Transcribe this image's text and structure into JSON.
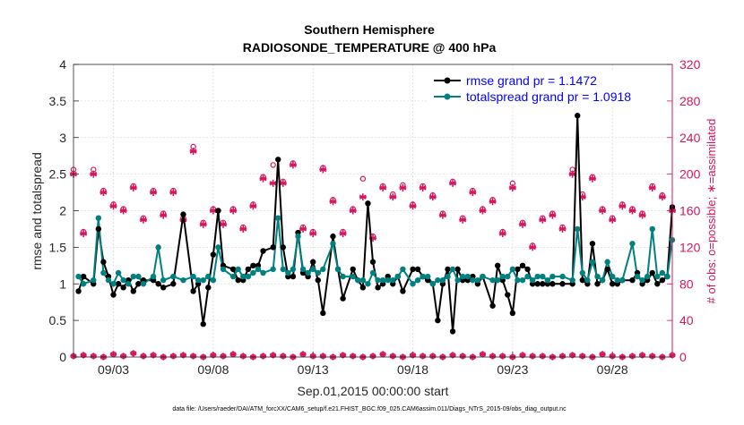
{
  "chart_data": {
    "type": "line",
    "title_line1": "Southern Hemisphere",
    "title_line2": "RADIOSONDE_TEMPERATURE @ 400 hPa",
    "xlabel": "Sep.01,2015 00:00:00 start",
    "ylabel_left": "rmse and totalspread",
    "ylabel_right": "# of obs: o=possible; ∗=assimilated",
    "footnote": "data file: /Users/raeder/DAI/ATM_forcXX/CAM6_setup/f.e21.FHIST_BGC.f09_025.CAM6assim.011/Diags_NTrS_2015-09/obs_diag_output.nc",
    "x_tick_labels": [
      "09/03",
      "09/08",
      "09/13",
      "09/18",
      "09/23",
      "09/28"
    ],
    "x_tick_days": [
      3,
      8,
      13,
      18,
      23,
      28
    ],
    "xlim": [
      1.0,
      31.0
    ],
    "ylim_left": [
      0,
      4
    ],
    "yticks_left": [
      "0",
      "0.5",
      "1",
      "1.5",
      "2",
      "2.5",
      "3",
      "3.5",
      "4"
    ],
    "ylim_right": [
      0,
      320
    ],
    "yticks_right": [
      "0",
      "40",
      "80",
      "120",
      "160",
      "200",
      "240",
      "280",
      "320"
    ],
    "legend": {
      "rmse_label": "rmse grand pr = 1.1472",
      "spread_label": "totalspread grand pr = 1.0918"
    },
    "colors": {
      "rmse": "#000000",
      "spread": "#00807f",
      "obs": "#d6145f",
      "legend_text": "#0000ff"
    },
    "series": [
      {
        "name": "rmse",
        "x": [
          1.25,
          1.5,
          2.0,
          2.25,
          2.5,
          2.75,
          3.0,
          3.25,
          3.5,
          3.75,
          4.0,
          4.25,
          4.5,
          5.0,
          5.25,
          5.5,
          6.0,
          6.5,
          7.0,
          7.25,
          7.5,
          7.75,
          8.0,
          8.25,
          8.5,
          9.0,
          9.25,
          9.5,
          9.75,
          10.0,
          10.25,
          10.5,
          11.0,
          11.25,
          11.5,
          11.75,
          12.0,
          12.25,
          12.5,
          12.75,
          13.0,
          13.25,
          13.5,
          14.0,
          14.25,
          14.5,
          15.0,
          15.25,
          15.5,
          15.75,
          16.0,
          16.25,
          16.5,
          16.75,
          17.0,
          17.25,
          17.5,
          18.0,
          18.25,
          18.5,
          18.75,
          19.0,
          19.25,
          19.5,
          19.75,
          20.0,
          20.25,
          20.5,
          20.75,
          21.0,
          21.25,
          21.5,
          22.0,
          22.25,
          22.5,
          22.75,
          23.0,
          23.25,
          23.5,
          23.75,
          24.0,
          24.25,
          24.5,
          24.75,
          25.0,
          25.5,
          26.0,
          26.25,
          26.5,
          26.75,
          27.0,
          27.25,
          27.5,
          27.75,
          28.0,
          28.25,
          28.5,
          29.0,
          29.25,
          29.5,
          29.75,
          30.0,
          30.25,
          30.5,
          30.75,
          31.0
        ],
        "values": [
          0.9,
          1.1,
          1.0,
          1.75,
          1.3,
          1.1,
          0.85,
          1.0,
          0.95,
          1.05,
          0.9,
          1.0,
          1.05,
          1.05,
          1.0,
          0.95,
          1.0,
          1.95,
          0.9,
          1.0,
          0.45,
          0.95,
          1.4,
          2.0,
          1.25,
          1.2,
          1.05,
          1.05,
          1.2,
          1.25,
          1.25,
          1.45,
          1.5,
          2.7,
          1.5,
          1.1,
          1.1,
          1.7,
          1.15,
          1.1,
          1.3,
          1.05,
          0.6,
          1.65,
          1.2,
          0.8,
          1.2,
          1.05,
          0.95,
          2.1,
          1.3,
          0.95,
          1.0,
          1.1,
          1.0,
          1.1,
          0.9,
          1.2,
          1.2,
          1.1,
          1.05,
          1.0,
          0.5,
          1.0,
          1.2,
          0.35,
          1.2,
          1.05,
          1.05,
          1.1,
          1.0,
          1.1,
          0.7,
          1.25,
          1.05,
          0.85,
          0.6,
          1.2,
          1.25,
          1.2,
          1.0,
          1.0,
          1.0,
          1.0,
          1.0,
          1.0,
          1.0,
          3.3,
          1.05,
          1.0,
          1.55,
          1.0,
          1.05,
          1.2,
          1.0,
          1.0,
          1.05,
          1.05,
          1.15,
          1.0,
          1.05,
          1.15,
          1.0,
          1.05,
          1.1,
          2.05
        ],
        "spread_values": [
          1.1,
          1.0,
          1.05,
          1.9,
          1.15,
          1.05,
          1.0,
          1.15,
          1.05,
          1.0,
          1.1,
          1.1,
          1.0,
          1.1,
          1.5,
          1.05,
          1.1,
          1.05,
          1.1,
          1.05,
          1.05,
          1.1,
          1.05,
          1.5,
          1.2,
          1.1,
          1.2,
          1.1,
          1.1,
          1.15,
          1.2,
          1.15,
          1.2,
          1.9,
          1.2,
          1.15,
          1.2,
          1.65,
          1.2,
          1.15,
          1.2,
          1.15,
          1.2,
          1.55,
          1.2,
          1.1,
          1.1,
          1.05,
          1.05,
          1.0,
          1.15,
          1.05,
          1.05,
          1.05,
          1.05,
          1.1,
          1.2,
          1.0,
          1.05,
          1.1,
          1.1,
          1.0,
          1.05,
          1.05,
          1.1,
          1.2,
          1.05,
          1.1,
          1.1,
          1.05,
          1.05,
          1.1,
          1.05,
          1.05,
          1.1,
          1.1,
          1.2,
          1.05,
          1.05,
          1.1,
          1.05,
          1.1,
          1.1,
          1.05,
          1.1,
          1.1,
          1.05,
          1.75,
          1.15,
          1.05,
          1.3,
          1.1,
          1.05,
          1.3,
          1.1,
          1.05,
          1.05,
          1.55,
          1.1,
          1.05,
          1.1,
          1.75,
          1.1,
          1.15,
          1.1,
          1.6
        ]
      },
      {
        "name": "totalspread",
        "x": [
          1.25,
          1.5,
          2.0,
          2.25,
          2.5,
          2.75,
          3.0,
          3.25,
          3.5,
          3.75,
          4.0,
          4.25,
          4.5,
          5.0,
          5.25,
          5.5,
          6.0,
          6.5,
          7.0,
          7.25,
          7.5,
          7.75,
          8.0,
          8.25,
          8.5,
          9.0,
          9.25,
          9.5,
          9.75,
          10.0,
          10.25,
          10.5,
          11.0,
          11.25,
          11.5,
          11.75,
          12.0,
          12.25,
          12.5,
          12.75,
          13.0,
          13.25,
          13.5,
          14.0,
          14.25,
          14.5,
          15.0,
          15.25,
          15.5,
          15.75,
          16.0,
          16.25,
          16.5,
          16.75,
          17.0,
          17.25,
          17.5,
          18.0,
          18.25,
          18.5,
          18.75,
          19.0,
          19.25,
          19.5,
          19.75,
          20.0,
          20.25,
          20.5,
          20.75,
          21.0,
          21.25,
          21.5,
          22.0,
          22.25,
          22.5,
          22.75,
          23.0,
          23.25,
          23.5,
          23.75,
          24.0,
          24.25,
          24.5,
          24.75,
          25.0,
          25.5,
          26.0,
          26.25,
          26.5,
          26.75,
          27.0,
          27.25,
          27.5,
          27.75,
          28.0,
          28.25,
          28.5,
          29.0,
          29.25,
          29.5,
          29.75,
          30.0,
          30.25,
          30.5,
          30.75,
          31.0
        ],
        "values": [
          1.1,
          1.0,
          1.05,
          1.9,
          1.15,
          1.05,
          1.0,
          1.15,
          1.05,
          1.0,
          1.1,
          1.1,
          1.0,
          1.1,
          1.5,
          1.05,
          1.1,
          1.05,
          1.1,
          1.05,
          1.05,
          1.1,
          1.05,
          1.5,
          1.2,
          1.1,
          1.2,
          1.1,
          1.1,
          1.15,
          1.2,
          1.15,
          1.2,
          1.9,
          1.2,
          1.15,
          1.2,
          1.65,
          1.2,
          1.15,
          1.2,
          1.15,
          1.2,
          1.55,
          1.2,
          1.1,
          1.1,
          1.05,
          1.05,
          1.0,
          1.15,
          1.05,
          1.05,
          1.05,
          1.05,
          1.1,
          1.2,
          1.0,
          1.05,
          1.1,
          1.1,
          1.0,
          1.05,
          1.05,
          1.1,
          1.2,
          1.05,
          1.1,
          1.1,
          1.05,
          1.05,
          1.1,
          1.05,
          1.05,
          1.1,
          1.1,
          1.2,
          1.05,
          1.05,
          1.1,
          1.05,
          1.1,
          1.1,
          1.05,
          1.1,
          1.1,
          1.05,
          1.75,
          1.15,
          1.05,
          1.3,
          1.1,
          1.05,
          1.3,
          1.1,
          1.05,
          1.05,
          1.55,
          1.1,
          1.05,
          1.1,
          1.75,
          1.1,
          1.15,
          1.1,
          1.6
        ]
      },
      {
        "name": "obs_assimilated",
        "x": [
          1.0,
          1.5,
          2.0,
          2.5,
          3.0,
          3.5,
          4.0,
          4.5,
          5.0,
          5.5,
          6.0,
          6.5,
          7.0,
          7.5,
          8.0,
          8.5,
          9.0,
          9.5,
          10.0,
          10.5,
          11.0,
          11.5,
          12.0,
          12.5,
          13.0,
          13.5,
          14.0,
          14.5,
          15.0,
          15.5,
          16.0,
          16.5,
          17.0,
          17.5,
          18.0,
          18.5,
          19.0,
          19.5,
          20.0,
          20.5,
          21.0,
          21.5,
          22.0,
          22.5,
          23.0,
          23.5,
          24.0,
          24.5,
          25.0,
          25.5,
          26.0,
          26.5,
          27.0,
          27.5,
          28.0,
          28.5,
          29.0,
          29.5,
          30.0,
          30.5,
          31.0
        ],
        "values": [
          200,
          135,
          200,
          180,
          165,
          160,
          185,
          150,
          180,
          155,
          180,
          150,
          225,
          145,
          160,
          145,
          160,
          140,
          165,
          195,
          190,
          190,
          210,
          140,
          135,
          205,
          170,
          135,
          160,
          175,
          130,
          185,
          175,
          185,
          165,
          185,
          175,
          155,
          190,
          150,
          180,
          160,
          170,
          135,
          185,
          145,
          120,
          150,
          155,
          140,
          200,
          175,
          195,
          160,
          150,
          165,
          160,
          155,
          185,
          175,
          160
        ]
      },
      {
        "name": "obs_possible",
        "x": [
          1.0,
          1.5,
          2.0,
          2.5,
          3.0,
          3.5,
          4.0,
          4.5,
          5.0,
          5.5,
          6.0,
          6.5,
          7.0,
          7.5,
          8.0,
          8.5,
          9.0,
          9.5,
          10.0,
          10.5,
          11.0,
          11.5,
          12.0,
          12.5,
          13.0,
          13.5,
          14.0,
          14.5,
          15.0,
          15.5,
          16.0,
          16.5,
          17.0,
          17.5,
          18.0,
          18.5,
          19.0,
          19.5,
          20.0,
          20.5,
          21.0,
          21.5,
          22.0,
          22.5,
          23.0,
          23.5,
          24.0,
          24.5,
          25.0,
          25.5,
          26.0,
          26.5,
          27.0,
          27.5,
          28.0,
          28.5,
          29.0,
          29.5,
          30.0,
          30.5,
          31.0
        ],
        "values": [
          205,
          137,
          205,
          182,
          167,
          162,
          187,
          152,
          182,
          157,
          182,
          152,
          230,
          147,
          162,
          147,
          162,
          142,
          167,
          197,
          210,
          192,
          212,
          142,
          137,
          207,
          172,
          137,
          162,
          195,
          132,
          187,
          178,
          188,
          167,
          187,
          177,
          157,
          192,
          152,
          182,
          162,
          172,
          137,
          190,
          147,
          122,
          152,
          157,
          142,
          205,
          178,
          197,
          162,
          152,
          167,
          162,
          157,
          187,
          177,
          162
        ]
      },
      {
        "name": "obs_bottom_row",
        "x": [
          1.0,
          1.5,
          2.0,
          2.5,
          3.0,
          3.5,
          4.0,
          4.5,
          5.0,
          5.5,
          6.0,
          6.5,
          7.0,
          7.5,
          8.0,
          8.5,
          9.0,
          9.5,
          10.0,
          10.5,
          11.0,
          11.5,
          12.0,
          12.5,
          13.0,
          13.5,
          14.0,
          14.5,
          15.0,
          15.5,
          16.0,
          16.5,
          17.0,
          17.5,
          18.0,
          18.5,
          19.0,
          19.5,
          20.0,
          20.5,
          21.0,
          21.5,
          22.0,
          22.5,
          23.0,
          23.5,
          24.0,
          24.5,
          25.0,
          25.5,
          26.0,
          26.5,
          27.0,
          27.5,
          28.0,
          28.5,
          29.0,
          29.5,
          30.0,
          30.5,
          31.0
        ],
        "values": [
          1,
          2,
          1,
          0,
          3,
          1,
          4,
          1,
          2,
          0,
          1,
          2,
          1,
          0,
          2,
          1,
          3,
          1,
          0,
          1,
          2,
          1,
          0,
          3,
          1,
          1,
          0,
          2,
          1,
          0,
          1,
          3,
          1,
          0,
          2,
          1,
          1,
          0,
          2,
          1,
          0,
          3,
          1,
          1,
          0,
          2,
          1,
          1,
          0,
          1,
          2,
          1,
          0,
          3,
          1,
          0,
          1,
          2,
          1,
          0,
          2
        ]
      }
    ]
  }
}
